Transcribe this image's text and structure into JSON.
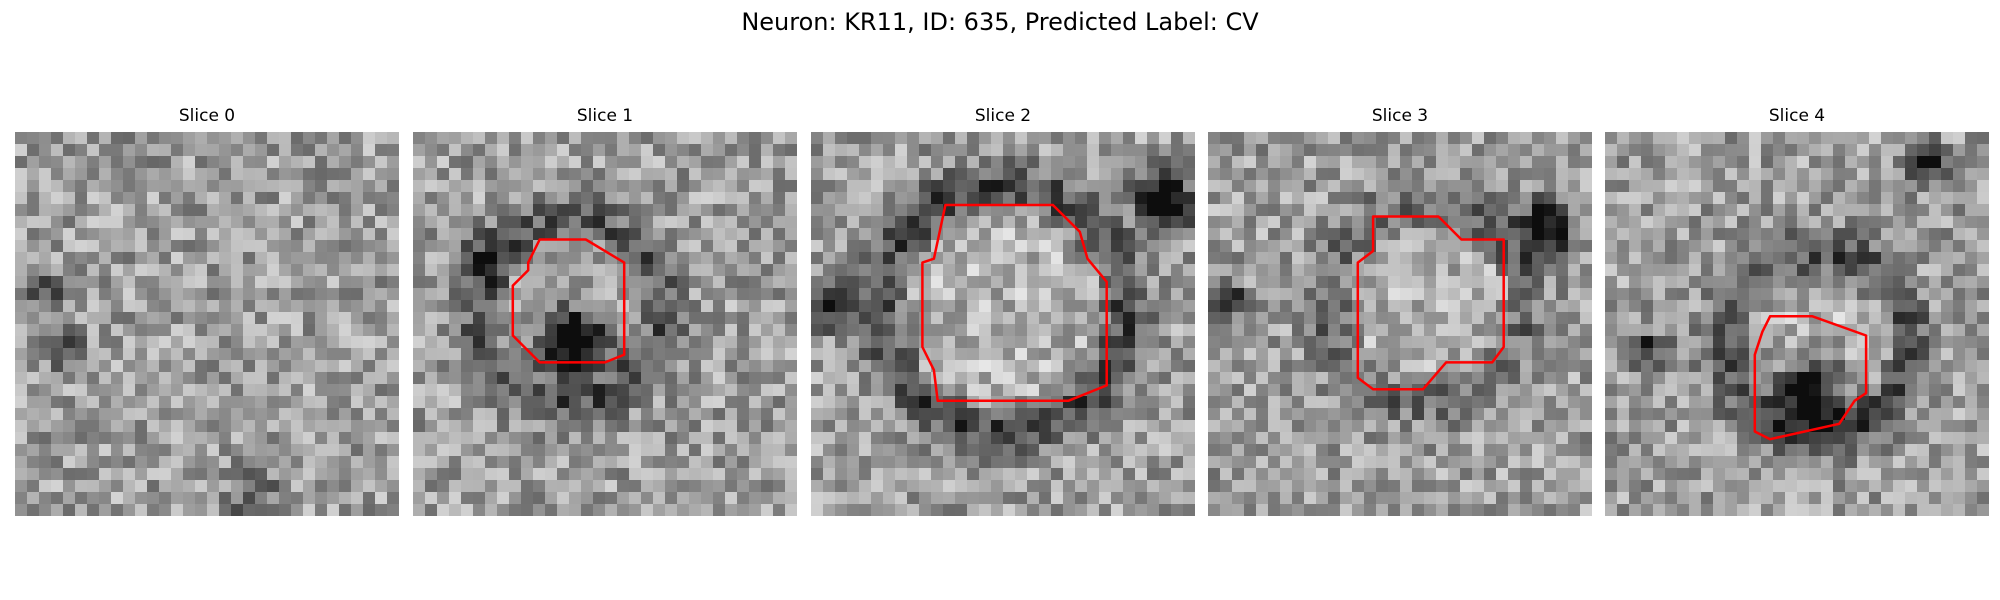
{
  "figure": {
    "title": "Neuron: KR11, ID: 635, Predicted Label: CV"
  },
  "colors": {
    "contour": "#ff0000",
    "background": "#ffffff"
  },
  "slices": [
    {
      "title": "Slice 0",
      "contour": null,
      "seed": 11,
      "dark_blobs": [
        [
          0.08,
          0.42,
          0.06,
          0.25
        ],
        [
          0.12,
          0.56,
          0.05,
          0.45
        ],
        [
          0.62,
          0.95,
          0.06,
          0.35
        ],
        [
          0.32,
          0.05,
          0.05,
          0.18
        ]
      ]
    },
    {
      "title": "Slice 1",
      "contour": [
        [
          0.33,
          0.28
        ],
        [
          0.45,
          0.28
        ],
        [
          0.55,
          0.34
        ],
        [
          0.55,
          0.58
        ],
        [
          0.5,
          0.6
        ],
        [
          0.48,
          0.6
        ],
        [
          0.43,
          0.6
        ],
        [
          0.33,
          0.6
        ],
        [
          0.26,
          0.53
        ],
        [
          0.26,
          0.4
        ],
        [
          0.3,
          0.36
        ],
        [
          0.3,
          0.34
        ]
      ],
      "seed": 23,
      "ring": [
        0.41,
        0.47,
        0.24,
        0.6
      ],
      "dark_blobs": [
        [
          0.42,
          0.55,
          0.09,
          0.85
        ],
        [
          0.19,
          0.33,
          0.06,
          0.35
        ]
      ]
    },
    {
      "title": "Slice 2",
      "contour": [
        [
          0.35,
          0.19
        ],
        [
          0.63,
          0.19
        ],
        [
          0.7,
          0.26
        ],
        [
          0.72,
          0.33
        ],
        [
          0.77,
          0.39
        ],
        [
          0.77,
          0.66
        ],
        [
          0.67,
          0.7
        ],
        [
          0.33,
          0.7
        ],
        [
          0.32,
          0.62
        ],
        [
          0.29,
          0.56
        ],
        [
          0.29,
          0.34
        ],
        [
          0.32,
          0.33
        ]
      ],
      "seed": 37,
      "ring": [
        0.5,
        0.46,
        0.32,
        0.75
      ],
      "dark_blobs": [
        [
          0.92,
          0.18,
          0.07,
          0.8
        ],
        [
          0.06,
          0.45,
          0.06,
          0.6
        ]
      ]
    },
    {
      "title": "Slice 3",
      "contour": [
        [
          0.43,
          0.22
        ],
        [
          0.6,
          0.22
        ],
        [
          0.66,
          0.28
        ],
        [
          0.77,
          0.28
        ],
        [
          0.77,
          0.56
        ],
        [
          0.74,
          0.6
        ],
        [
          0.62,
          0.6
        ],
        [
          0.56,
          0.67
        ],
        [
          0.43,
          0.67
        ],
        [
          0.39,
          0.64
        ],
        [
          0.39,
          0.34
        ],
        [
          0.43,
          0.31
        ]
      ],
      "seed": 53,
      "ring": [
        0.57,
        0.45,
        0.26,
        0.45
      ],
      "dark_blobs": [
        [
          0.88,
          0.25,
          0.07,
          0.7
        ],
        [
          0.04,
          0.44,
          0.05,
          0.6
        ]
      ]
    },
    {
      "title": "Slice 4",
      "contour": [
        [
          0.43,
          0.48
        ],
        [
          0.54,
          0.48
        ],
        [
          0.68,
          0.53
        ],
        [
          0.68,
          0.68
        ],
        [
          0.65,
          0.7
        ],
        [
          0.61,
          0.76
        ],
        [
          0.43,
          0.8
        ],
        [
          0.39,
          0.78
        ],
        [
          0.39,
          0.58
        ],
        [
          0.41,
          0.52
        ]
      ],
      "seed": 71,
      "ring": [
        0.55,
        0.55,
        0.24,
        0.7
      ],
      "dark_blobs": [
        [
          0.54,
          0.68,
          0.09,
          0.65
        ],
        [
          0.83,
          0.08,
          0.05,
          0.6
        ],
        [
          0.11,
          0.57,
          0.05,
          0.45
        ]
      ]
    }
  ]
}
